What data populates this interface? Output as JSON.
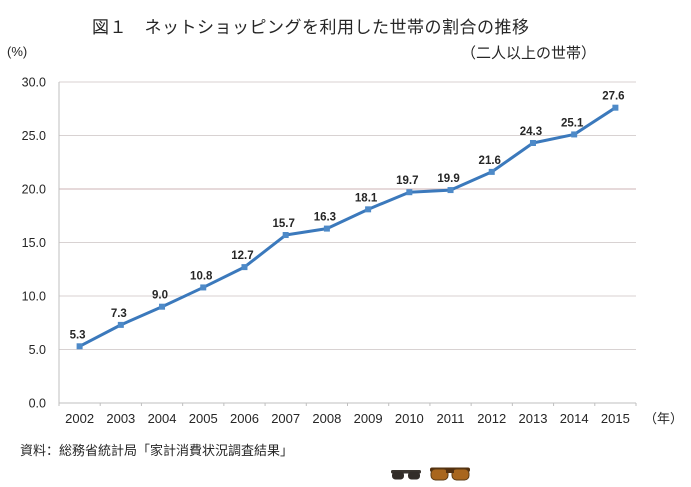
{
  "chart_data": {
    "type": "line",
    "title": "図１　ネットショッピングを利用した世帯の割合の推移",
    "subtitle": "（二人以上の世帯）",
    "y_unit_label": "(%)",
    "x_unit_label": "（年）",
    "categories": [
      "2002",
      "2003",
      "2004",
      "2005",
      "2006",
      "2007",
      "2008",
      "2009",
      "2010",
      "2011",
      "2012",
      "2013",
      "2014",
      "2015"
    ],
    "values": [
      5.3,
      7.3,
      9.0,
      10.8,
      12.7,
      15.7,
      16.3,
      18.1,
      19.7,
      19.9,
      21.6,
      24.3,
      25.1,
      27.6
    ],
    "data_labels": [
      "5.3",
      "7.3",
      "9.0",
      "10.8",
      "12.7",
      "15.7",
      "16.3",
      "18.1",
      "19.7",
      "19.9",
      "21.6",
      "24.3",
      "25.1",
      "27.6"
    ],
    "ylim": [
      0,
      30
    ],
    "yticks": [
      0,
      5,
      10,
      15,
      20,
      25,
      30
    ],
    "ytick_labels": [
      "0.0",
      "5.0",
      "10.0",
      "15.0",
      "20.0",
      "25.0",
      "30.0"
    ],
    "grid": true,
    "legend": "none",
    "colors": {
      "line": "#3b79bc",
      "marker": "#4e8ac8",
      "gridline": "#d8d2d2",
      "gridline_highlight": "#cdb3b5",
      "gridline_highlight_value": 20,
      "axis": "#bfbfbf",
      "text": "#262626"
    }
  },
  "source": {
    "text": "資料：総務省統計局「家計消費状況調査結果」"
  },
  "bottom_images": {
    "left": {
      "name": "dark-sunglasses-image",
      "color": "#3a3530"
    },
    "right": {
      "name": "brown-sunglasses-image",
      "color": "#a9661d",
      "rim": "#53300f"
    }
  }
}
